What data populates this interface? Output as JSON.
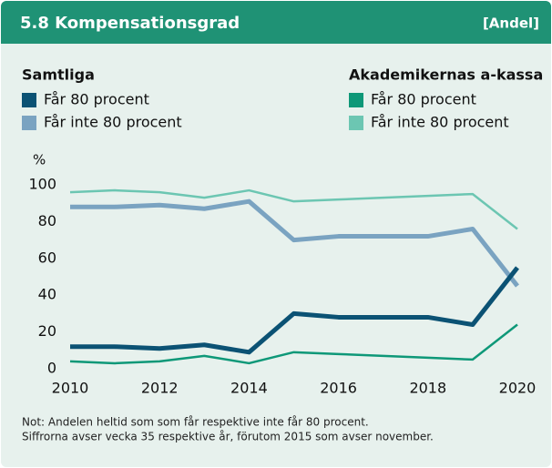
{
  "chart_data": {
    "type": "line",
    "title": "5.8  Kompensationsgrad",
    "subtitle": "[Andel]",
    "y_label": "%",
    "legend_groups": [
      "Samtliga",
      "Akademikernas a-kassa"
    ],
    "x": [
      2010,
      2011,
      2012,
      2013,
      2014,
      2015,
      2016,
      2017,
      2018,
      2019,
      2020
    ],
    "series": [
      {
        "name": "Får 80 procent",
        "group": 0,
        "color": "#0b5274",
        "values": [
          12,
          12,
          11,
          13,
          9,
          30,
          28,
          28,
          28,
          24,
          55
        ]
      },
      {
        "name": "Får inte 80 procent",
        "group": 0,
        "color": "#7aa3c1",
        "values": [
          88,
          88,
          89,
          87,
          91,
          70,
          72,
          72,
          72,
          76,
          45
        ]
      },
      {
        "name": "Får 80 procent",
        "group": 1,
        "color": "#0e9878",
        "values": [
          4,
          3,
          4,
          7,
          3,
          9,
          8,
          7,
          6,
          5,
          24
        ]
      },
      {
        "name": "Får inte 80 procent",
        "group": 1,
        "color": "#6cc6b2",
        "values": [
          96,
          97,
          96,
          93,
          97,
          91,
          92,
          93,
          94,
          95,
          76
        ]
      }
    ],
    "xlim": [
      2010,
      2020
    ],
    "xticks": [
      2010,
      2012,
      2014,
      2016,
      2018,
      2020
    ],
    "ylim": [
      0,
      100
    ],
    "yticks": [
      0,
      20,
      40,
      60,
      80,
      100
    ],
    "notes": [
      "Not: Andelen heltid som som får respektive inte får 80 procent.",
      "Siffrorna avser vecka 35 respektive år, förutom 2015 som avser november."
    ]
  }
}
